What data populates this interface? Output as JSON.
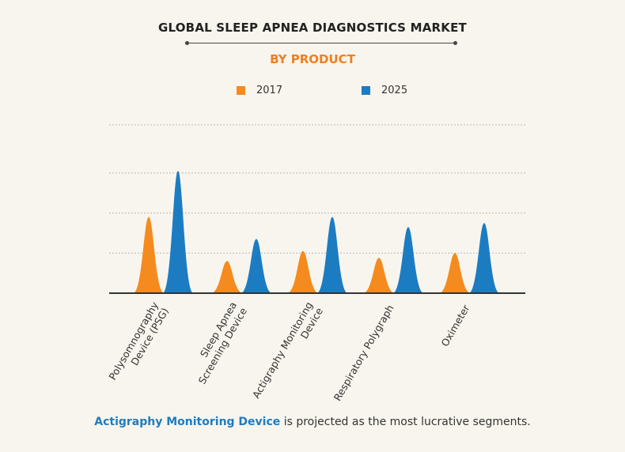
{
  "title": "GLOBAL SLEEP APNEA DIAGNOSTICS MARKET",
  "subtitle": "BY PRODUCT",
  "footer": {
    "highlight": "Actigraphy Monitoring Device",
    "rest": " is projected as the most lucrative segments."
  },
  "colors": {
    "series_2017": "#f58a1f",
    "series_2025": "#1c7cc2",
    "title_accent": "#f07f1f",
    "highlight": "#1c7cc2"
  },
  "chart_data": {
    "type": "area",
    "title": "GLOBAL SLEEP APNEA DIAGNOSTICS MARKET",
    "subtitle": "BY PRODUCT",
    "xlabel": "",
    "ylabel": "",
    "ylim": [
      0,
      4.2
    ],
    "grid": true,
    "legend": "top-center",
    "categories": [
      [
        "Polysomnography",
        "Device (PSG)"
      ],
      [
        "Sleep Apnea",
        "Screening Device"
      ],
      [
        "Actigraphy Monitoring",
        "Device"
      ],
      [
        "Respiratory Polygraph"
      ],
      [
        "Oximeter"
      ]
    ],
    "series": [
      {
        "name": "2017",
        "values": [
          1.9,
          0.8,
          1.05,
          0.88,
          1.0
        ]
      },
      {
        "name": "2025",
        "values": [
          3.05,
          1.35,
          1.9,
          1.65,
          1.75
        ]
      }
    ]
  }
}
